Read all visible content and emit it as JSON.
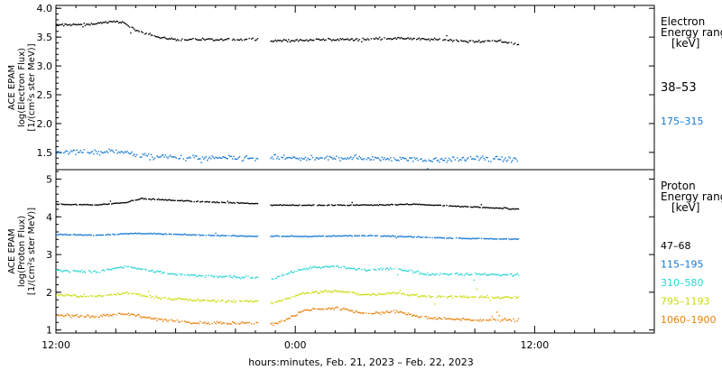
{
  "xaxis": {
    "label": "hours:minutes, Feb. 21, 2023 – Feb. 22, 2023",
    "range": [
      0,
      30
    ],
    "ticks": [
      {
        "v": 0,
        "label": "12:00"
      },
      {
        "v": 12,
        "label": "0:00"
      },
      {
        "v": 24,
        "label": "12:00"
      }
    ],
    "gap": [
      10.1,
      10.7
    ],
    "data_end": 23.2
  },
  "chart_data": [
    {
      "type": "scatter",
      "panel": "electron",
      "ylabel": [
        "ACE EPAM",
        "log(Electron Flux)",
        "[1/(cm²s ster MeV)]"
      ],
      "ylim": [
        1.2,
        4.05
      ],
      "yticks": [
        1.5,
        2.0,
        2.5,
        3.0,
        3.5,
        4.0
      ],
      "ytick_labels": [
        "1.5",
        "2.0",
        "2.5",
        "3.0",
        "3.5",
        "4.0"
      ],
      "legend_title": [
        "Electron",
        "Energy ranges",
        "[keV]"
      ],
      "series": [
        {
          "name": "38–53",
          "color": "#000000",
          "profile": [
            [
              0,
              3.72
            ],
            [
              1.5,
              3.73
            ],
            [
              2.5,
              3.77
            ],
            [
              3.3,
              3.78
            ],
            [
              3.6,
              3.7
            ],
            [
              4,
              3.62
            ],
            [
              4.6,
              3.57
            ],
            [
              5.2,
              3.5
            ],
            [
              6,
              3.47
            ],
            [
              7,
              3.47
            ],
            [
              8,
              3.46
            ],
            [
              9,
              3.47
            ],
            [
              10.1,
              3.48
            ],
            [
              10.7,
              3.45
            ],
            [
              12,
              3.45
            ],
            [
              13.5,
              3.47
            ],
            [
              15,
              3.47
            ],
            [
              16.5,
              3.49
            ],
            [
              18,
              3.48
            ],
            [
              19.5,
              3.46
            ],
            [
              21,
              3.43
            ],
            [
              22,
              3.45
            ],
            [
              23.2,
              3.38
            ]
          ],
          "scatter": 0.03
        },
        {
          "name": "175–315",
          "color": "#1478d2",
          "profile": [
            [
              0,
              1.52
            ],
            [
              2,
              1.52
            ],
            [
              3.3,
              1.53
            ],
            [
              4,
              1.45
            ],
            [
              6,
              1.42
            ],
            [
              8,
              1.41
            ],
            [
              10.1,
              1.4
            ],
            [
              10.7,
              1.42
            ],
            [
              13,
              1.4
            ],
            [
              15,
              1.42
            ],
            [
              17,
              1.4
            ],
            [
              19,
              1.38
            ],
            [
              21,
              1.4
            ],
            [
              23.2,
              1.38
            ]
          ],
          "scatter": 0.07
        }
      ]
    },
    {
      "type": "scatter",
      "panel": "proton",
      "ylabel": [
        "ACE EPAM",
        "log(Proton Flux)",
        "[1/(cm²s ster MeV)]"
      ],
      "ylim": [
        0.92,
        5.25
      ],
      "yticks": [
        1,
        2,
        3,
        4,
        5
      ],
      "ytick_labels": [
        "1",
        "2",
        "3",
        "4",
        "5"
      ],
      "legend_title": [
        "Proton",
        "Energy ranges",
        "[keV]"
      ],
      "series": [
        {
          "name": "47–68",
          "color": "#000000",
          "profile": [
            [
              0,
              4.35
            ],
            [
              2,
              4.33
            ],
            [
              3.5,
              4.4
            ],
            [
              4.2,
              4.5
            ],
            [
              6,
              4.45
            ],
            [
              8,
              4.4
            ],
            [
              10.1,
              4.37
            ],
            [
              10.7,
              4.33
            ],
            [
              13,
              4.32
            ],
            [
              16,
              4.33
            ],
            [
              18,
              4.35
            ],
            [
              20,
              4.3
            ],
            [
              22,
              4.25
            ],
            [
              23.2,
              4.22
            ]
          ],
          "scatter": 0.02
        },
        {
          "name": "115–195",
          "color": "#1478d2",
          "profile": [
            [
              0,
              3.55
            ],
            [
              2,
              3.53
            ],
            [
              4,
              3.58
            ],
            [
              6,
              3.55
            ],
            [
              8,
              3.52
            ],
            [
              10.1,
              3.5
            ],
            [
              10.7,
              3.5
            ],
            [
              13,
              3.5
            ],
            [
              16,
              3.52
            ],
            [
              18,
              3.48
            ],
            [
              20,
              3.45
            ],
            [
              23.2,
              3.42
            ]
          ],
          "scatter": 0.02
        },
        {
          "name": "310–580",
          "color": "#2ad4d4",
          "profile": [
            [
              0,
              2.6
            ],
            [
              2,
              2.55
            ],
            [
              3.5,
              2.7
            ],
            [
              5,
              2.55
            ],
            [
              7,
              2.45
            ],
            [
              10.1,
              2.4
            ],
            [
              10.7,
              2.35
            ],
            [
              11.5,
              2.5
            ],
            [
              12.5,
              2.65
            ],
            [
              14,
              2.7
            ],
            [
              15.5,
              2.6
            ],
            [
              17,
              2.65
            ],
            [
              18.5,
              2.5
            ],
            [
              20,
              2.5
            ],
            [
              23.2,
              2.47
            ]
          ],
          "scatter": 0.05
        },
        {
          "name": "795–1193",
          "color": "#c8dc0a",
          "profile": [
            [
              0,
              1.95
            ],
            [
              2,
              1.9
            ],
            [
              3.5,
              2.0
            ],
            [
              5,
              1.88
            ],
            [
              7,
              1.8
            ],
            [
              10.1,
              1.77
            ],
            [
              10.7,
              1.7
            ],
            [
              11.5,
              1.85
            ],
            [
              12.5,
              2.0
            ],
            [
              14,
              2.05
            ],
            [
              15.5,
              1.95
            ],
            [
              17,
              2.0
            ],
            [
              18.5,
              1.9
            ],
            [
              20,
              1.9
            ],
            [
              23.2,
              1.87
            ]
          ],
          "scatter": 0.05
        },
        {
          "name": "1060–1900",
          "color": "#e8820a",
          "profile": [
            [
              0,
              1.4
            ],
            [
              2,
              1.38
            ],
            [
              3.5,
              1.45
            ],
            [
              5,
              1.3
            ],
            [
              7,
              1.2
            ],
            [
              10.1,
              1.2
            ],
            [
              10.7,
              1.15
            ],
            [
              11.5,
              1.3
            ],
            [
              12.5,
              1.55
            ],
            [
              14,
              1.6
            ],
            [
              15.5,
              1.45
            ],
            [
              17,
              1.5
            ],
            [
              18.5,
              1.35
            ],
            [
              20,
              1.3
            ],
            [
              23.2,
              1.27
            ]
          ],
          "scatter": 0.06
        }
      ]
    }
  ]
}
